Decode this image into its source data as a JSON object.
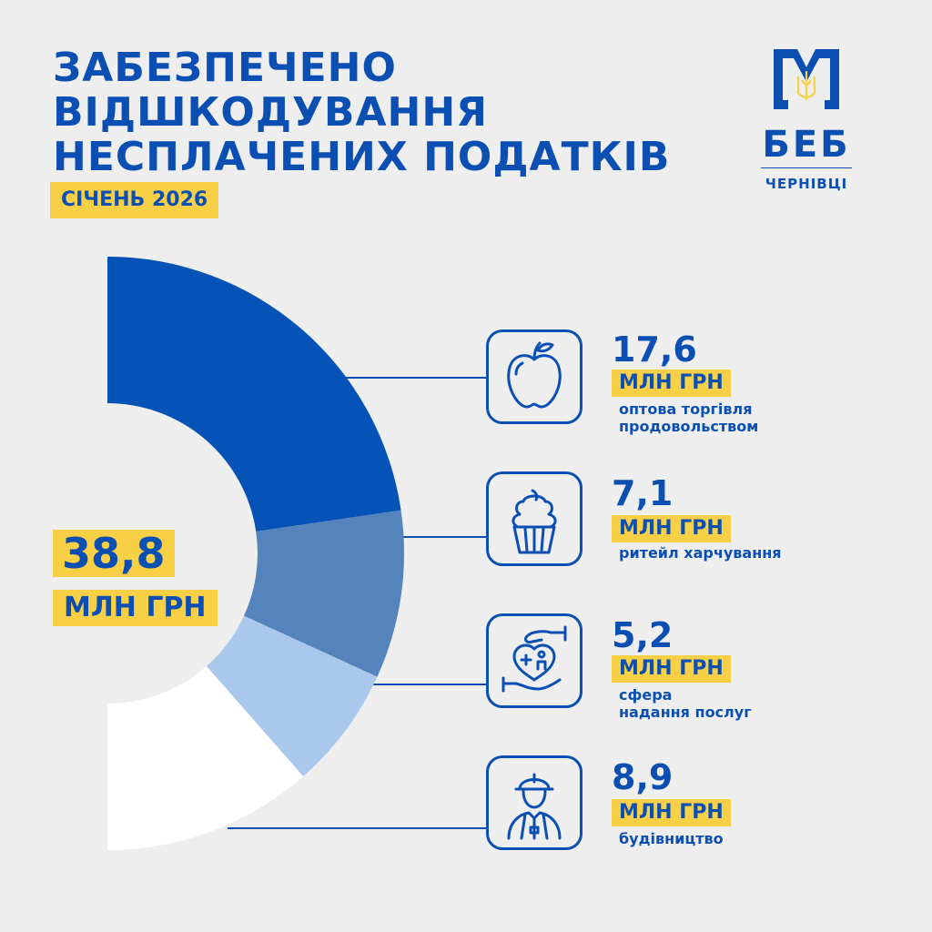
{
  "title": {
    "lines": [
      "ЗАБЕЗПЕЧЕНО",
      "ВІДШКОДУВАННЯ",
      "НЕСПЛАЧЕНИХ ПОДАТКІВ"
    ]
  },
  "period": "СІЧЕНЬ 2026",
  "logo": {
    "abbr": "БЕБ",
    "city": "ЧЕРНІВЦІ",
    "emblem_icon": "trident-emblem-icon"
  },
  "total": {
    "value": "38,8",
    "unit": "МЛН ГРН"
  },
  "colors": {
    "brand_blue": "#0b4fb3",
    "accent_yellow": "#f7d046",
    "series": [
      "#0653b8",
      "#5584bc",
      "#aac8ec",
      "#ffffff"
    ]
  },
  "chart_data": {
    "type": "pie",
    "title": "ЗАБЕЗПЕЧЕНО ВІДШКОДУВАННЯ НЕСПЛАЧЕНИХ ПОДАТКІВ",
    "unit": "МЛН ГРН",
    "total": 38.8,
    "slices": [
      {
        "value": 17.6,
        "value_label": "17,6",
        "unit": "МЛН ГРН",
        "label_lines": [
          "оптова торгівля",
          "продовольством"
        ],
        "icon": "apple-icon",
        "color": "#0653b8"
      },
      {
        "value": 7.1,
        "value_label": "7,1",
        "unit": "МЛН ГРН",
        "label_lines": [
          "ритейл харчування"
        ],
        "icon": "cupcake-icon",
        "color": "#5584bc"
      },
      {
        "value": 5.2,
        "value_label": "5,2",
        "unit": "МЛН ГРН",
        "label_lines": [
          "сфера",
          "надання послуг"
        ],
        "icon": "care-hands-icon",
        "color": "#aac8ec"
      },
      {
        "value": 8.9,
        "value_label": "8,9",
        "unit": "МЛН ГРН",
        "label_lines": [
          "будівництво"
        ],
        "icon": "construction-worker-icon",
        "color": "#ffffff"
      }
    ]
  }
}
